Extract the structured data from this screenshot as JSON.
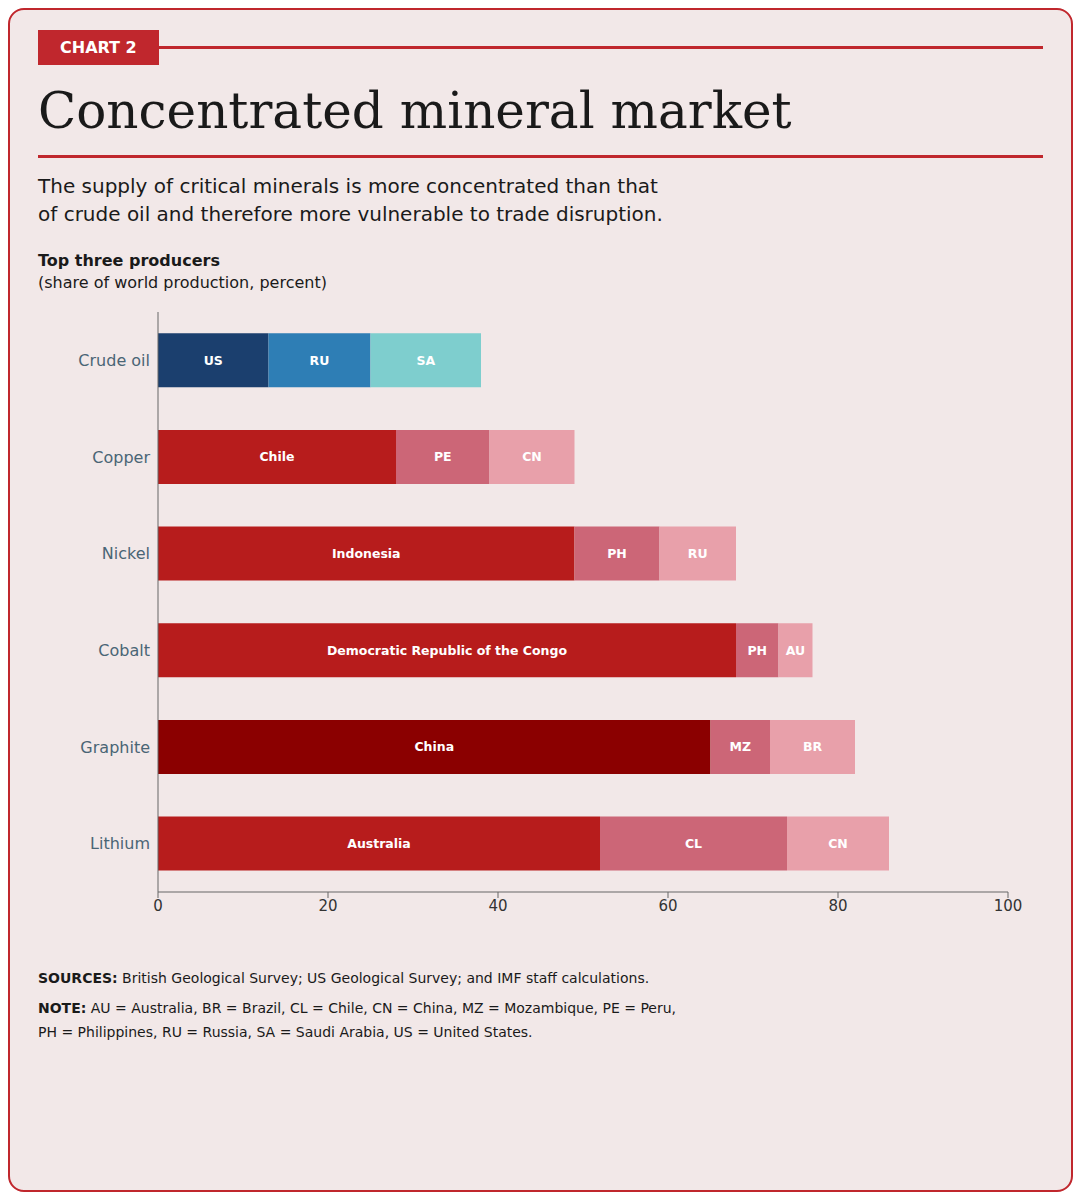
{
  "chart_data": {
    "type": "bar",
    "orientation": "horizontal",
    "stacked": true,
    "grid": false,
    "label": "CHART 2",
    "title": "Concentrated mineral market",
    "subtitle": [
      "The supply of critical minerals is more concentrated than that",
      "of crude oil and therefore more vulnerable to trade disruption."
    ],
    "axis_title_bold": "Top three producers",
    "axis_title": "(share of world production, percent)",
    "categories": [
      "Crude oil",
      "Copper",
      "Nickel",
      "Cobalt",
      "Graphite",
      "Lithium"
    ],
    "series": [
      {
        "values": [
          13,
          28,
          49,
          68,
          65,
          52
        ],
        "labels": [
          "US",
          "Chile",
          "Indonesia",
          "Democratic Republic of the Congo",
          "China",
          "Australia"
        ],
        "colors": [
          "#1b3f6e",
          "#b71c1c",
          "#b71c1c",
          "#b71c1c",
          "#8b0000",
          "#b71c1c"
        ]
      },
      {
        "values": [
          12,
          11,
          10,
          5,
          7,
          22
        ],
        "labels": [
          "RU",
          "PE",
          "PH",
          "PH",
          "MZ",
          "CL"
        ],
        "colors": [
          "#2e7eb5",
          "#cc6677",
          "#cc6677",
          "#cc6677",
          "#cc6677",
          "#cc6677"
        ]
      },
      {
        "values": [
          13,
          10,
          9,
          4,
          10,
          12
        ],
        "labels": [
          "SA",
          "CN",
          "RU",
          "AU",
          "BR",
          "CN"
        ],
        "colors": [
          "#7ecece",
          "#e8a0aa",
          "#e8a0aa",
          "#e8a0aa",
          "#e8a0aa",
          "#e8a0aa"
        ]
      }
    ],
    "xlim": [
      0,
      100
    ],
    "xticks": [
      0,
      20,
      40,
      60,
      80,
      100
    ],
    "sources": {
      "label": "SOURCES:",
      "text": "British Geological Survey; US Geological Survey; and IMF staff calculations."
    },
    "note": {
      "label": "NOTE:",
      "lines": [
        "AU = Australia, BR = Brazil, CL = Chile, CN = China, MZ = Mozambique, PE = Peru,",
        "PH = Philippines, RU = Russia, SA = Saudi Arabia, US = United States."
      ]
    }
  }
}
